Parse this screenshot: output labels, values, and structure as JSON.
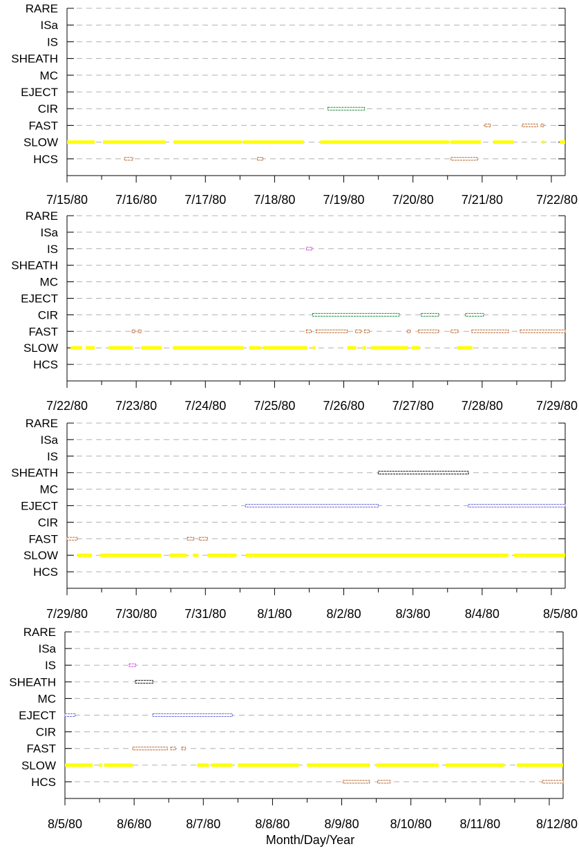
{
  "x_axis_title": "Month/Day/Year",
  "colors": {
    "SLOW": "#ffff00",
    "FAST": "#b8642a",
    "CIR": "#1a8a3a",
    "EJECT": "#6a6ad8",
    "SHEATH": "#000000",
    "IS": "#d040d0",
    "HCS": "#b8642a",
    "grid": "#b0b0b0"
  },
  "chart_data": [
    {
      "type": "timeline",
      "categories": [
        "RARE",
        "ISa",
        "IS",
        "SHEATH",
        "MC",
        "EJECT",
        "CIR",
        "FAST",
        "SLOW",
        "HCS"
      ],
      "x_tick_labels": [
        "7/15/80",
        "7/16/80",
        "7/17/80",
        "7/18/80",
        "7/19/80",
        "7/20/80",
        "7/21/80",
        "7/22/80"
      ],
      "x_range_days": [
        0,
        7.2
      ],
      "grid": "dashed horizontal",
      "series": [
        {
          "category": "SLOW",
          "intervals": [
            [
              0.0,
              0.4
            ],
            [
              0.52,
              1.42
            ],
            [
              1.54,
              2.52
            ],
            [
              2.54,
              3.42
            ],
            [
              3.66,
              5.52
            ],
            [
              5.54,
              5.98
            ],
            [
              6.16,
              6.46
            ],
            [
              6.87,
              6.9
            ],
            [
              7.12,
              7.2
            ]
          ]
        },
        {
          "category": "HCS",
          "intervals": [
            [
              0.83,
              0.95
            ],
            [
              2.75,
              2.83
            ],
            [
              5.55,
              5.93
            ]
          ]
        },
        {
          "category": "FAST",
          "intervals": [
            [
              6.04,
              6.12
            ],
            [
              6.58,
              6.8
            ],
            [
              6.85,
              6.89
            ]
          ]
        },
        {
          "category": "CIR",
          "intervals": [
            [
              3.77,
              4.3
            ]
          ]
        }
      ]
    },
    {
      "type": "timeline",
      "categories": [
        "RARE",
        "ISa",
        "IS",
        "SHEATH",
        "MC",
        "EJECT",
        "CIR",
        "FAST",
        "SLOW",
        "HCS"
      ],
      "x_tick_labels": [
        "7/22/80",
        "7/23/80",
        "7/24/80",
        "7/25/80",
        "7/26/80",
        "7/27/80",
        "7/28/80",
        "7/29/80"
      ],
      "x_range_days": [
        0,
        7.2
      ],
      "grid": "dashed horizontal",
      "series": [
        {
          "category": "SLOW",
          "intervals": [
            [
              0.05,
              0.22
            ],
            [
              0.27,
              0.4
            ],
            [
              0.6,
              0.95
            ],
            [
              1.07,
              1.37
            ],
            [
              1.53,
              2.55
            ],
            [
              2.63,
              2.8
            ],
            [
              2.83,
              3.47
            ],
            [
              3.55,
              3.59
            ],
            [
              4.05,
              4.18
            ],
            [
              4.27,
              4.32
            ],
            [
              4.39,
              4.93
            ],
            [
              4.98,
              5.1
            ],
            [
              5.64,
              5.86
            ]
          ]
        },
        {
          "category": "FAST",
          "intervals": [
            [
              0.94,
              0.98
            ],
            [
              1.03,
              1.07
            ],
            [
              3.46,
              3.53
            ],
            [
              3.6,
              4.05
            ],
            [
              4.17,
              4.25
            ],
            [
              4.3,
              4.37
            ],
            [
              4.92,
              4.96
            ],
            [
              5.08,
              5.37
            ],
            [
              5.55,
              5.65
            ],
            [
              5.85,
              6.38
            ],
            [
              6.55,
              7.2
            ]
          ]
        },
        {
          "category": "CIR",
          "intervals": [
            [
              3.55,
              4.8
            ],
            [
              5.12,
              5.37
            ],
            [
              5.76,
              6.02
            ]
          ]
        },
        {
          "category": "IS",
          "intervals": [
            [
              3.46,
              3.54
            ]
          ]
        }
      ]
    },
    {
      "type": "timeline",
      "categories": [
        "RARE",
        "ISa",
        "IS",
        "SHEATH",
        "MC",
        "EJECT",
        "CIR",
        "FAST",
        "SLOW",
        "HCS"
      ],
      "x_tick_labels": [
        "7/29/80",
        "7/30/80",
        "7/31/80",
        "8/1/80",
        "8/2/80",
        "8/3/80",
        "8/4/80",
        "8/5/80"
      ],
      "x_range_days": [
        0,
        7.2
      ],
      "grid": "dashed horizontal",
      "series": [
        {
          "category": "SLOW",
          "intervals": [
            [
              0.15,
              0.36
            ],
            [
              0.48,
              1.36
            ],
            [
              1.48,
              1.73
            ],
            [
              1.82,
              1.9
            ],
            [
              2.03,
              2.45
            ],
            [
              2.58,
              6.38
            ],
            [
              6.46,
              7.2
            ]
          ]
        },
        {
          "category": "FAST",
          "intervals": [
            [
              0.0,
              0.15
            ],
            [
              1.74,
              1.83
            ],
            [
              1.91,
              2.03
            ]
          ]
        },
        {
          "category": "EJECT",
          "intervals": [
            [
              2.58,
              4.5
            ],
            [
              5.8,
              7.2
            ]
          ]
        },
        {
          "category": "SHEATH",
          "intervals": [
            [
              4.5,
              5.8
            ]
          ]
        }
      ]
    },
    {
      "type": "timeline",
      "categories": [
        "RARE",
        "ISa",
        "IS",
        "SHEATH",
        "MC",
        "EJECT",
        "CIR",
        "FAST",
        "SLOW",
        "HCS"
      ],
      "x_tick_labels": [
        "8/5/80",
        "8/6/80",
        "8/7/80",
        "8/8/80",
        "8/9/80",
        "8/10/80",
        "8/11/80",
        "8/12/80"
      ],
      "x_range_days": [
        0,
        7.2
      ],
      "grid": "dashed horizontal",
      "series": [
        {
          "category": "SLOW",
          "intervals": [
            [
              0.0,
              0.4
            ],
            [
              0.49,
              0.54
            ],
            [
              0.57,
              0.98
            ],
            [
              1.91,
              2.08
            ],
            [
              2.12,
              2.42
            ],
            [
              2.5,
              3.38
            ],
            [
              3.5,
              4.4
            ],
            [
              4.5,
              5.4
            ],
            [
              5.5,
              6.35
            ],
            [
              6.53,
              7.2
            ]
          ]
        },
        {
          "category": "HCS",
          "intervals": [
            [
              4.02,
              4.4
            ],
            [
              4.52,
              4.7
            ],
            [
              6.9,
              7.2
            ]
          ]
        },
        {
          "category": "FAST",
          "intervals": [
            [
              0.98,
              1.48
            ],
            [
              1.53,
              1.6
            ],
            [
              1.69,
              1.74
            ]
          ]
        },
        {
          "category": "EJECT",
          "intervals": [
            [
              0.0,
              0.15
            ],
            [
              1.27,
              2.42
            ]
          ]
        },
        {
          "category": "SHEATH",
          "intervals": [
            [
              1.02,
              1.27
            ]
          ]
        },
        {
          "category": "IS",
          "intervals": [
            [
              0.93,
              1.02
            ]
          ]
        }
      ]
    }
  ]
}
